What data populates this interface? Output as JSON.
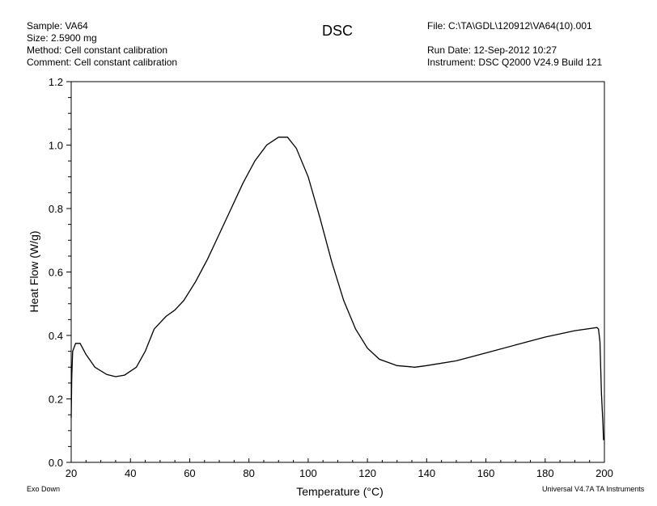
{
  "header": {
    "sample": "Sample: VA64",
    "size": "Size:  2.5900 mg",
    "method": "Method: Cell constant calibration",
    "comment": "Comment: Cell constant calibration",
    "file": "File: C:\\TA\\GDL\\120912\\VA64(10).001",
    "run_date": "Run Date: 12-Sep-2012 10:27",
    "instrument": "Instrument: DSC Q2000 V24.9 Build 121"
  },
  "footer": {
    "exo": "Exo Down",
    "software": "Universal V4.7A TA Instruments"
  },
  "chart_data": {
    "type": "line",
    "title": "DSC",
    "xlabel": "Temperature (°C)",
    "ylabel": "Heat Flow (W/g)",
    "xlim": [
      20,
      200
    ],
    "ylim": [
      0,
      1.2
    ],
    "xticks": [
      "20",
      "40",
      "60",
      "80",
      "100",
      "120",
      "140",
      "160",
      "180",
      "200"
    ],
    "yticks": [
      "0.0",
      "0.2",
      "0.4",
      "0.6",
      "0.8",
      "1.0",
      "1.2"
    ],
    "grid": false,
    "series": [
      {
        "name": "Heat Flow",
        "x": [
          20,
          20.2,
          20.5,
          21.5,
          23,
          25,
          28,
          32,
          35,
          38,
          42,
          45,
          48,
          52,
          55,
          58,
          62,
          66,
          70,
          74,
          78,
          82,
          86,
          90,
          93,
          96,
          100,
          104,
          108,
          112,
          116,
          120,
          124,
          130,
          136,
          140,
          150,
          160,
          170,
          180,
          190,
          197.5,
          198,
          198.5,
          199,
          199.5,
          199.7
        ],
        "y": [
          0.14,
          0.27,
          0.35,
          0.375,
          0.375,
          0.34,
          0.3,
          0.277,
          0.27,
          0.275,
          0.3,
          0.35,
          0.42,
          0.46,
          0.48,
          0.51,
          0.57,
          0.64,
          0.72,
          0.8,
          0.88,
          0.95,
          1.0,
          1.025,
          1.025,
          0.99,
          0.9,
          0.77,
          0.63,
          0.51,
          0.42,
          0.36,
          0.325,
          0.305,
          0.3,
          0.305,
          0.32,
          0.345,
          0.37,
          0.395,
          0.415,
          0.425,
          0.42,
          0.38,
          0.22,
          0.12,
          0.07
        ]
      }
    ]
  }
}
